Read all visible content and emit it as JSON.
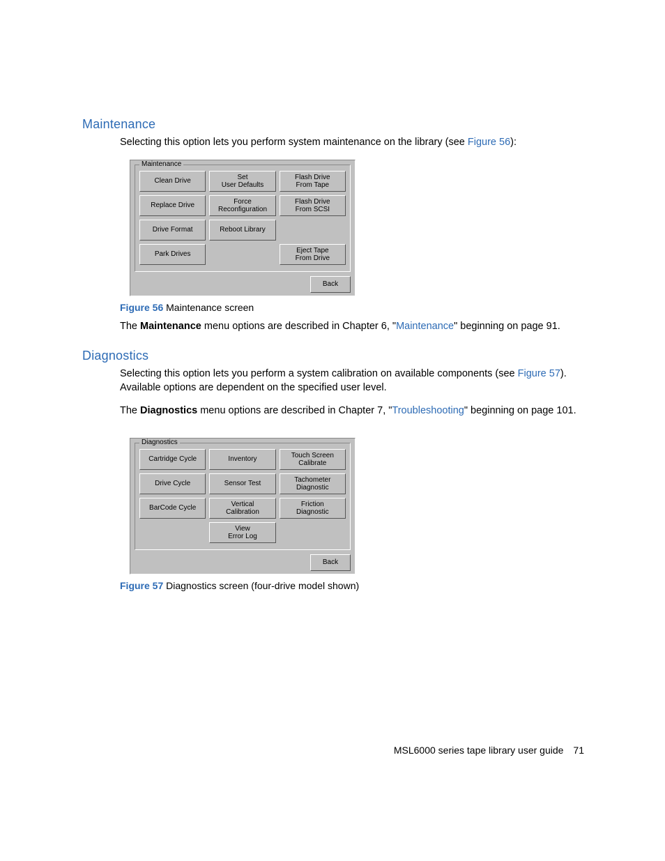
{
  "colors": {
    "accent": "#2d6bb5",
    "panel_bg": "#c0c0c0",
    "text": "#000000",
    "page_bg": "#ffffff"
  },
  "sections": {
    "maintenance": {
      "heading": "Maintenance",
      "intro_a": "Selecting this option lets you perform system maintenance on the library (see ",
      "intro_link": "Figure 56",
      "intro_b": "):",
      "panel": {
        "group_title": "Maintenance",
        "rows": [
          [
            "Clean Drive",
            "Set\nUser Defaults",
            "Flash Drive\nFrom Tape"
          ],
          [
            "Replace Drive",
            "Force\nReconfiguration",
            "Flash Drive\nFrom SCSI"
          ],
          [
            "Drive Format",
            "Reboot Library",
            ""
          ],
          [
            "Park Drives",
            "",
            "Eject Tape\nFrom Drive"
          ]
        ],
        "back": "Back"
      },
      "caption_label": "Figure 56",
      "caption_text": " Maintenance screen",
      "para2_a": "The ",
      "para2_bold": "Maintenance",
      "para2_b": " menu options are described in Chapter 6, \"",
      "para2_link": "Maintenance",
      "para2_c": "\" beginning on page 91."
    },
    "diagnostics": {
      "heading": "Diagnostics",
      "intro_a": "Selecting this option lets you perform a system calibration on available components (see ",
      "intro_link": "Figure 57",
      "intro_b": "). Available options are dependent on the specified user level.",
      "para2_a": "The ",
      "para2_bold": "Diagnostics",
      "para2_b": " menu options are described in Chapter 7, \"",
      "para2_link": "Troubleshooting",
      "para2_c": "\" beginning on page 101.",
      "panel": {
        "group_title": "Diagnostics",
        "rows": [
          [
            "Cartridge Cycle",
            "Inventory",
            "Touch Screen\nCalibrate"
          ],
          [
            "Drive Cycle",
            "Sensor Test",
            "Tachometer\nDiagnostic"
          ],
          [
            "BarCode Cycle",
            "Vertical\nCalibration",
            "Friction\nDiagnostic"
          ],
          [
            "",
            "View\nError Log",
            ""
          ]
        ],
        "back": "Back"
      },
      "caption_label": "Figure 57",
      "caption_text": " Diagnostics screen (four-drive model shown)"
    }
  },
  "footer": {
    "title": "MSL6000 series tape library user guide",
    "page": "71"
  }
}
